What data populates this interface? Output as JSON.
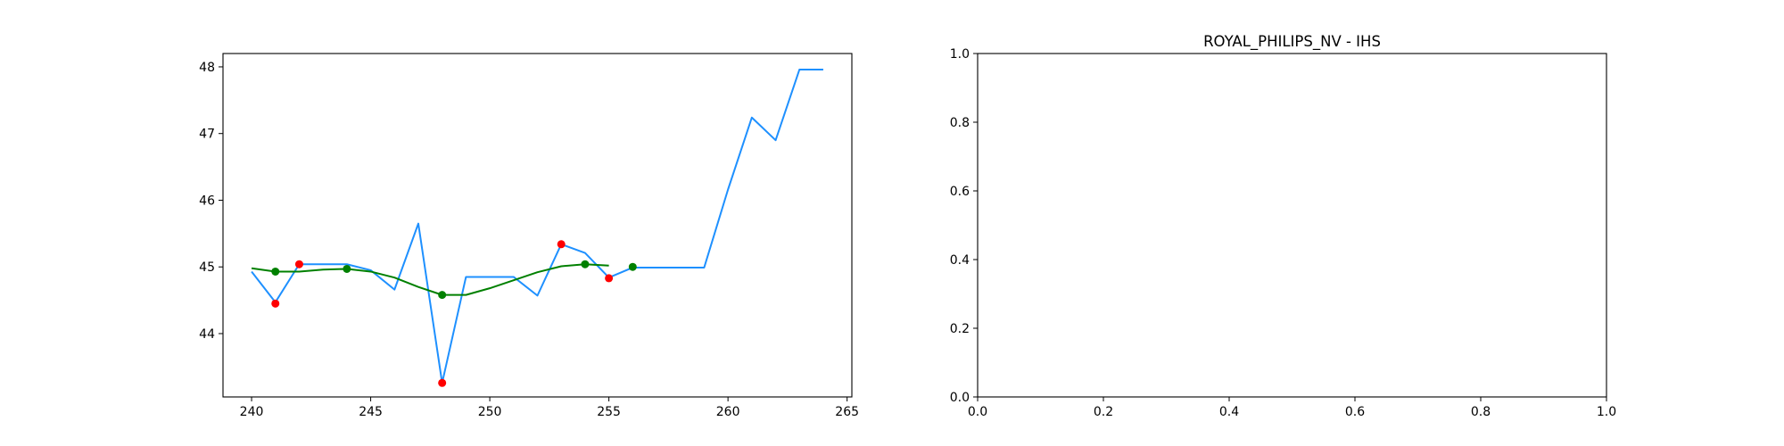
{
  "chart_data": [
    {
      "type": "line",
      "title": "",
      "xlabel": "",
      "ylabel": "",
      "xlim": [
        238.8,
        265.2
      ],
      "ylim": [
        43.05,
        48.2
      ],
      "xticks": [
        240,
        245,
        250,
        255,
        260,
        265
      ],
      "yticks": [
        44,
        45,
        46,
        47,
        48
      ],
      "grid": false,
      "legend": "none",
      "series": [
        {
          "kind": "line",
          "color": "#1e90ff",
          "x": [
            240,
            241,
            242,
            243,
            244,
            245,
            246,
            247,
            248,
            249,
            250,
            251,
            252,
            253,
            254,
            255,
            256,
            257,
            258,
            259,
            260,
            261,
            262,
            263,
            264
          ],
          "y": [
            44.93,
            44.47,
            45.04,
            45.04,
            45.04,
            44.95,
            44.66,
            45.65,
            43.26,
            44.85,
            44.85,
            44.85,
            44.57,
            45.34,
            45.21,
            44.84,
            44.99,
            44.99,
            44.99,
            44.99,
            46.16,
            47.24,
            46.9,
            47.96,
            47.96
          ]
        },
        {
          "kind": "line",
          "color": "#008000",
          "x": [
            240,
            241,
            242,
            243,
            244,
            245,
            246,
            247,
            248,
            249,
            250,
            251,
            252,
            253,
            254,
            255
          ],
          "y": [
            44.98,
            44.93,
            44.93,
            44.96,
            44.97,
            44.93,
            44.84,
            44.7,
            44.58,
            44.58,
            44.68,
            44.8,
            44.92,
            45.01,
            45.04,
            45.02
          ]
        },
        {
          "kind": "scatter",
          "color": "#ff0000",
          "x": [
            241,
            242,
            248,
            253,
            255
          ],
          "y": [
            44.45,
            45.04,
            43.26,
            45.34,
            44.83
          ]
        },
        {
          "kind": "scatter",
          "color": "#008000",
          "x": [
            241,
            244,
            248,
            254,
            256
          ],
          "y": [
            44.93,
            44.97,
            44.58,
            45.04,
            45.0
          ]
        }
      ]
    },
    {
      "type": "line",
      "title": "ROYAL_PHILIPS_NV - IHS",
      "xlabel": "",
      "ylabel": "",
      "xlim": [
        0,
        1
      ],
      "ylim": [
        0,
        1
      ],
      "xticks": [
        0.0,
        0.2,
        0.4,
        0.6,
        0.8,
        1.0
      ],
      "yticks": [
        0.0,
        0.2,
        0.4,
        0.6,
        0.8,
        1.0
      ],
      "tick_format": "0.0",
      "grid": false,
      "legend": "none",
      "series": []
    }
  ]
}
